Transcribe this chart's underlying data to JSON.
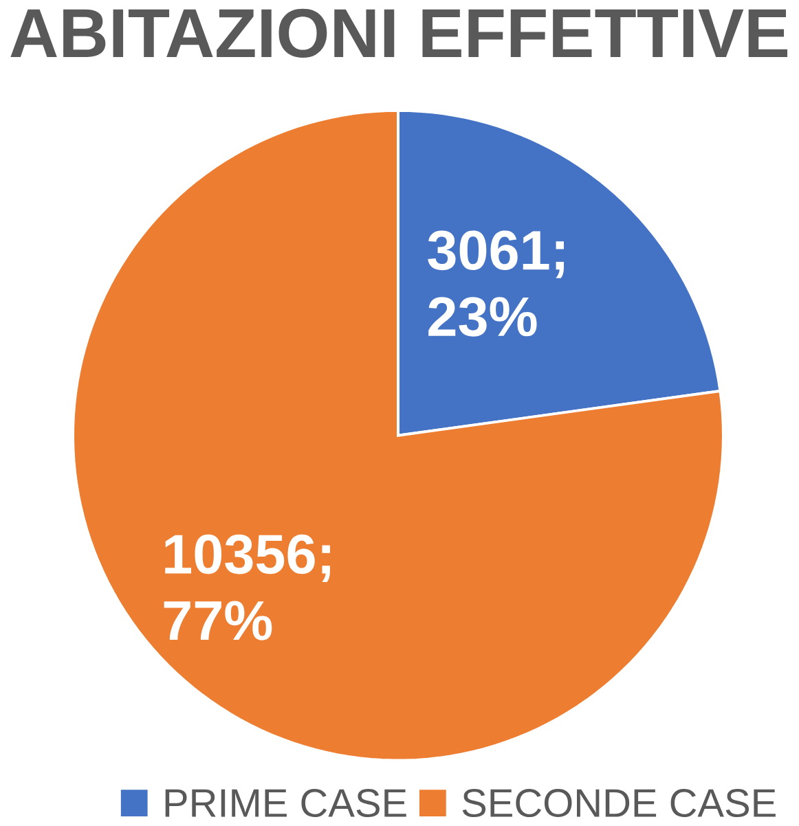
{
  "chart_data": {
    "type": "pie",
    "title": "ABITAZIONI EFFETTIVE",
    "categories": [
      "PRIME CASE",
      "SECONDE CASE"
    ],
    "values": [
      3061,
      10356
    ],
    "colors": [
      "#4472c4",
      "#ed7d31"
    ],
    "value_labels": [
      "3061; 23%",
      "10356; 77%"
    ],
    "legend": "bottom"
  }
}
